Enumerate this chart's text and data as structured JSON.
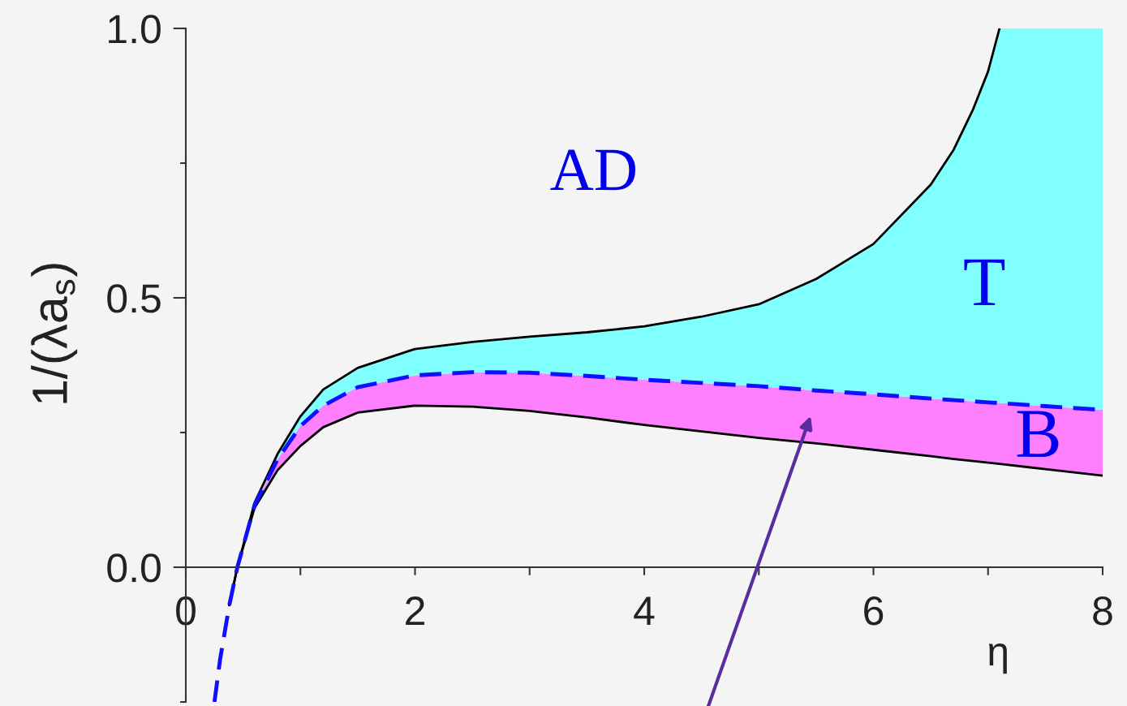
{
  "chart_data": {
    "type": "line",
    "xlabel": "η",
    "ylabel": "1/(λa$_{s}$)",
    "xlim": [
      0,
      8
    ],
    "xticks": [
      0,
      {
        "value": 1,
        "label": null
      },
      2,
      {
        "value": 3,
        "label": null
      },
      4,
      {
        "value": 5,
        "label": null
      },
      6,
      {
        "value": 7,
        "label": null
      },
      8
    ],
    "ylim": [
      -0.25,
      1.0
    ],
    "yticks": [
      {
        "value": -0.25,
        "label": null
      },
      {
        "value": 0,
        "label": "0.0"
      },
      {
        "value": 0.25,
        "label": null
      },
      {
        "value": 0.5,
        "label": "0.5"
      },
      {
        "value": 0.75,
        "label": null
      },
      {
        "value": 1.0,
        "label": "1.0"
      }
    ],
    "line_style": "solid",
    "series": [
      {
        "type": "line",
        "color": "#000000",
        "x": [
          0.38,
          0.45,
          0.6,
          0.8,
          1.0,
          1.2,
          1.5,
          2.0,
          2.5,
          3.0,
          3.5,
          4.0,
          4.5,
          5.0,
          5.5,
          6.0,
          6.5,
          6.7,
          6.87,
          7.0,
          7.1,
          7.5,
          8.0
        ],
        "values": [
          -0.07,
          0,
          0.11,
          0.18,
          0.225,
          0.26,
          0.287,
          0.3,
          0.298,
          0.29,
          0.278,
          0.264,
          0.252,
          0.24,
          0.23,
          0.218,
          0.206,
          0.201,
          0.197,
          0.194,
          0.192,
          0.182,
          0.17
        ]
      },
      {
        "type": "area",
        "color": "#ff80ff",
        "x": [
          0.45,
          0.6,
          0.8,
          1.0,
          1.2,
          1.5,
          2.0,
          2.5,
          3.0,
          3.5,
          4.0,
          4.5,
          5.0,
          5.5,
          6.0,
          6.5,
          6.7,
          6.87,
          7.0,
          7.1,
          7.5,
          8.0
        ],
        "values": [
          0,
          0.115,
          0.2,
          0.262,
          0.3,
          0.334,
          0.356,
          0.362,
          0.361,
          0.355,
          0.348,
          0.342,
          0.336,
          0.328,
          0.321,
          0.313,
          0.31,
          0.308,
          0.306,
          0.305,
          0.299,
          0.292
        ]
      },
      {
        "type": "area",
        "color": "#80ffff",
        "x": [
          0.45,
          0.6,
          0.8,
          1.0,
          1.2,
          1.5,
          2.0,
          2.5,
          3.0,
          3.5,
          4.0,
          4.5,
          5.0,
          5.5,
          6.0,
          6.5,
          6.7,
          6.87,
          7.0,
          7.1,
          7.5,
          8.0
        ],
        "values": [
          0,
          0.12,
          0.21,
          0.28,
          0.33,
          0.37,
          0.405,
          0.418,
          0.428,
          0.436,
          0.447,
          0.465,
          0.488,
          0.535,
          0.6,
          0.71,
          0.775,
          0.85,
          0.92,
          1.0,
          1.0,
          1.0
        ]
      },
      {
        "type": "line",
        "color": "#000000",
        "x": [
          0.38,
          0.45,
          0.6,
          0.8,
          1.0,
          1.2,
          1.5,
          2.0,
          2.5,
          3.0,
          3.5,
          4.0,
          4.5,
          5.0,
          5.5,
          6.0,
          6.5,
          6.7,
          6.87,
          7.0,
          7.1
        ],
        "values": [
          -0.07,
          0,
          0.12,
          0.21,
          0.28,
          0.33,
          0.37,
          0.405,
          0.418,
          0.428,
          0.436,
          0.447,
          0.465,
          0.488,
          0.535,
          0.6,
          0.71,
          0.775,
          0.85,
          0.92,
          1.0
        ]
      },
      {
        "color": "#1010ff",
        "line_style": "dashed",
        "x": [
          0.25,
          0.3,
          0.38,
          0.45,
          0.6,
          0.8,
          1.0,
          1.2,
          1.5,
          2.0,
          2.5,
          3.0,
          3.5,
          4.0,
          4.5,
          5.0,
          5.5,
          6.0,
          6.5,
          7.0,
          7.5,
          8.0
        ],
        "values": [
          -0.25,
          -0.17,
          -0.07,
          0,
          0.115,
          0.2,
          0.262,
          0.3,
          0.334,
          0.356,
          0.362,
          0.361,
          0.355,
          0.348,
          0.342,
          0.336,
          0.328,
          0.321,
          0.313,
          0.306,
          0.299,
          0.292
        ]
      }
    ],
    "annotations": [
      "AD",
      "T",
      "B"
    ]
  }
}
